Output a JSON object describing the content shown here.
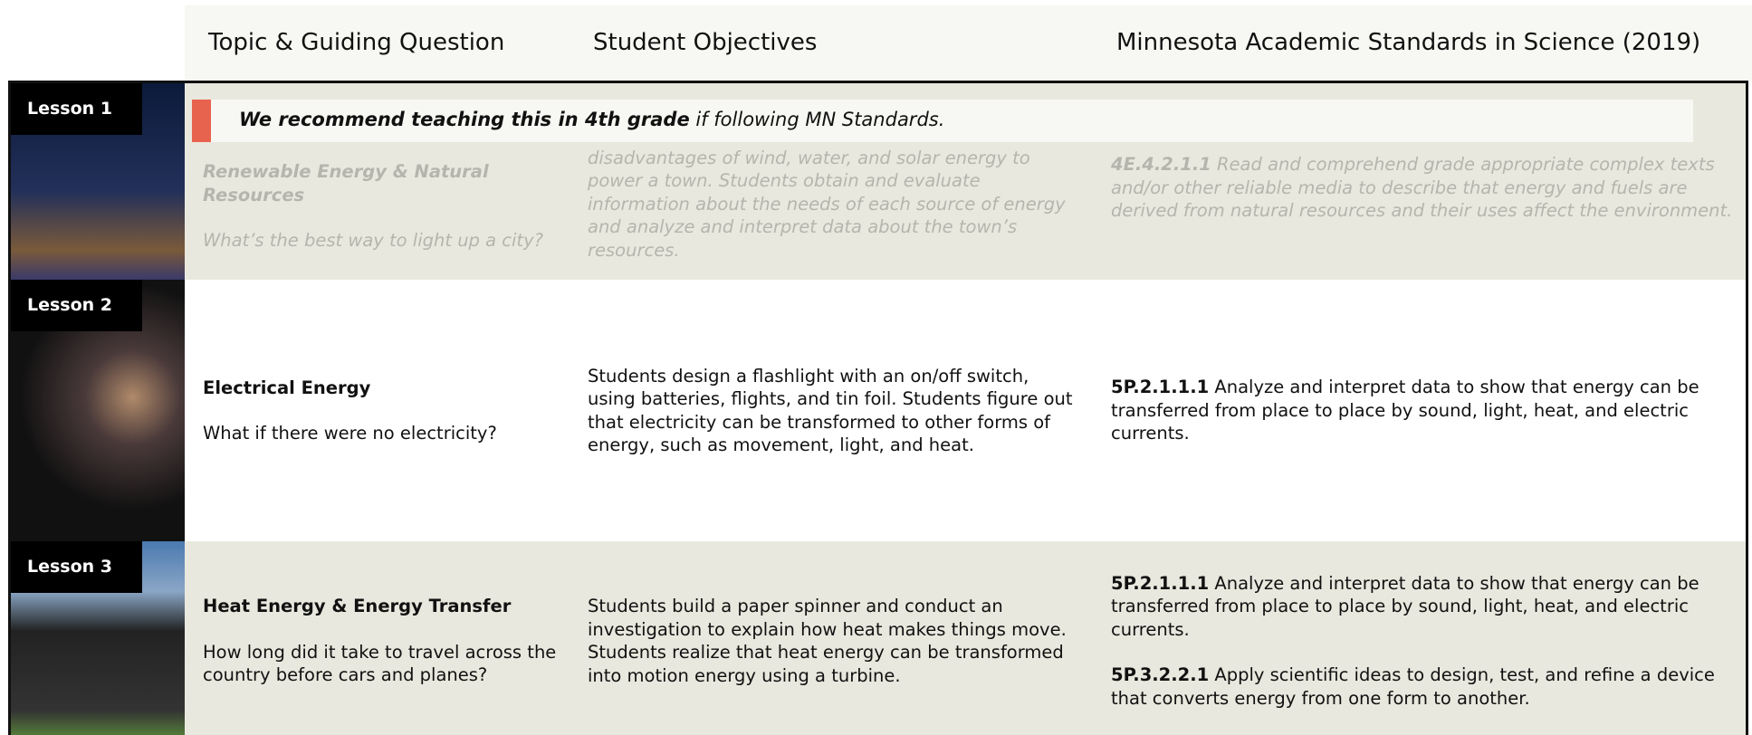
{
  "header": {
    "columns": [
      "Topic & Guiding Question",
      "Student Objectives",
      "Minnesota Academic Standards in Science (2019)"
    ]
  },
  "banner": {
    "bold": "We recommend teaching this in 4th grade",
    "rest": " if following MN Standards."
  },
  "lessons": [
    {
      "label": "Lesson 1",
      "topic": "Renewable Energy & Natural Resources",
      "question": "What’s the best way to light up a city?",
      "objectives": "disadvantages of wind, water, and solar energy to power a town. Students obtain and evaluate information about the needs of each source of energy and analyze and interpret data about the town’s resources.",
      "standards": [
        {
          "code": "4E.4.2.1.1",
          "text": " Read and comprehend grade appropriate complex texts and/or other reliable media to describe that energy and fuels are derived from natural resources and their uses affect the environment."
        }
      ]
    },
    {
      "label": "Lesson 2",
      "topic": "Electrical Energy",
      "question": "What if there were no electricity?",
      "objectives": "Students design a flashlight with an on/off switch, using batteries, flights, and tin foil. Students figure out that electricity can be transformed to other forms of energy, such as movement, light, and heat.",
      "standards": [
        {
          "code": "5P.2.1.1.1",
          "text": " Analyze and interpret data to show that energy can be transferred from place to place by sound, light, heat, and electric currents."
        }
      ]
    },
    {
      "label": "Lesson 3",
      "topic": "Heat Energy & Energy Transfer",
      "question": "How long did it take to travel across the country before cars and planes?",
      "objectives": "Students build a paper spinner and conduct an investigation to explain how heat makes things move. Students realize that heat energy can be transformed into motion energy using a turbine.",
      "standards": [
        {
          "code": "5P.2.1.1.1",
          "text": " Analyze and interpret data to show that energy can be transferred from place to place by sound, light, heat, and electric currents."
        },
        {
          "code": "5P.3.2.2.1",
          "text": " Apply scientific ideas to design, test, and refine a device that converts energy from one form to another."
        }
      ]
    }
  ]
}
